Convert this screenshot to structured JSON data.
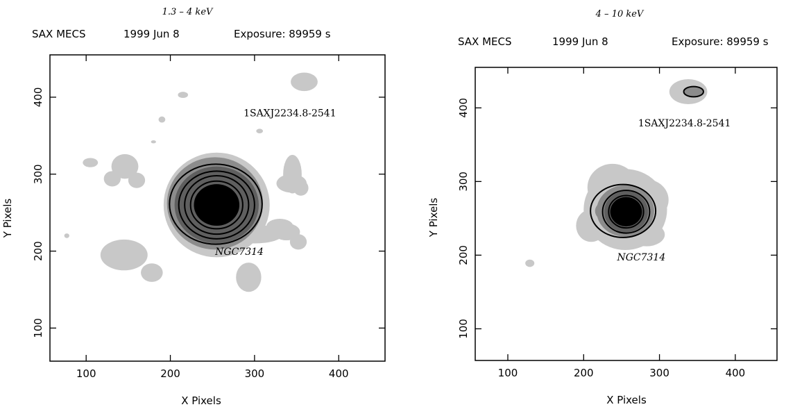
{
  "chart_data": [
    {
      "type": "heatmap",
      "energy_band": "1.3 – 4 keV",
      "header": {
        "instrument": "SAX MECS",
        "date": "1999 Jun 8",
        "exposure": "Exposure: 89959 s"
      },
      "xlabel": "X Pixels",
      "ylabel": "Y Pixels",
      "xlim": [
        57,
        455
      ],
      "ylim": [
        57,
        455
      ],
      "xticks": [
        100,
        200,
        300,
        400
      ],
      "yticks": [
        100,
        200,
        300,
        400
      ],
      "labels": [
        {
          "text": "1SAXJ2234.8-2541",
          "x": 342,
          "y": 375,
          "style": "source"
        },
        {
          "text": "NGC7314",
          "x": 282,
          "y": 195,
          "style": "galaxy"
        }
      ],
      "blobs": [
        {
          "cx": 255,
          "cy": 260,
          "rx": 63,
          "ry": 68,
          "level": 1
        },
        {
          "cx": 300,
          "cy": 222,
          "rx": 34,
          "ry": 12,
          "level": 1
        },
        {
          "cx": 330,
          "cy": 232,
          "rx": 16,
          "ry": 10,
          "level": 1
        },
        {
          "cx": 338,
          "cy": 225,
          "rx": 16,
          "ry": 11,
          "level": 1
        },
        {
          "cx": 352,
          "cy": 212,
          "rx": 10,
          "ry": 10,
          "level": 1
        },
        {
          "cx": 145,
          "cy": 195,
          "rx": 28,
          "ry": 20,
          "level": 1
        },
        {
          "cx": 178,
          "cy": 172,
          "rx": 13,
          "ry": 12,
          "level": 1
        },
        {
          "cx": 293,
          "cy": 166,
          "rx": 15,
          "ry": 19,
          "level": 1
        },
        {
          "cx": 146,
          "cy": 310,
          "rx": 16,
          "ry": 16,
          "level": 1
        },
        {
          "cx": 160,
          "cy": 292,
          "rx": 10,
          "ry": 10,
          "level": 1
        },
        {
          "cx": 131,
          "cy": 294,
          "rx": 10,
          "ry": 10,
          "level": 1
        },
        {
          "cx": 105,
          "cy": 315,
          "rx": 9,
          "ry": 6,
          "level": 1
        },
        {
          "cx": 345,
          "cy": 300,
          "rx": 11,
          "ry": 25,
          "level": 1
        },
        {
          "cx": 344,
          "cy": 288,
          "rx": 18,
          "ry": 12,
          "level": 1
        },
        {
          "cx": 355,
          "cy": 282,
          "rx": 9,
          "ry": 10,
          "level": 1
        },
        {
          "cx": 359,
          "cy": 420,
          "rx": 16,
          "ry": 12,
          "level": 1
        },
        {
          "cx": 215,
          "cy": 403,
          "rx": 6,
          "ry": 4,
          "level": 1
        },
        {
          "cx": 190,
          "cy": 371,
          "rx": 4,
          "ry": 4,
          "level": 1
        },
        {
          "cx": 306,
          "cy": 356,
          "rx": 4,
          "ry": 3,
          "level": 1
        },
        {
          "cx": 77,
          "cy": 220,
          "rx": 3,
          "ry": 3,
          "level": 1
        },
        {
          "cx": 180,
          "cy": 342,
          "rx": 3,
          "ry": 2,
          "level": 1
        },
        {
          "cx": 253,
          "cy": 262,
          "rx": 57,
          "ry": 60,
          "level": 2
        },
        {
          "cx": 255,
          "cy": 260,
          "rx": 50,
          "ry": 50,
          "level": 3
        },
        {
          "cx": 255,
          "cy": 260,
          "rx": 42,
          "ry": 42,
          "level": 3
        },
        {
          "cx": 255,
          "cy": 260,
          "rx": 34,
          "ry": 34,
          "level": 3
        },
        {
          "cx": 255,
          "cy": 260,
          "rx": 27,
          "ry": 27,
          "level": 4
        }
      ],
      "contours": [
        {
          "cx": 254,
          "cy": 261,
          "rx": 55,
          "ry": 52
        },
        {
          "cx": 255,
          "cy": 260,
          "rx": 45,
          "ry": 44
        },
        {
          "cx": 255,
          "cy": 260,
          "rx": 38,
          "ry": 38
        },
        {
          "cx": 255,
          "cy": 260,
          "rx": 31,
          "ry": 31
        }
      ]
    },
    {
      "type": "heatmap",
      "energy_band": "4 – 10 keV",
      "header": {
        "instrument": "SAX MECS",
        "date": "1999 Jun 8",
        "exposure": "Exposure: 89959 s"
      },
      "xlabel": "X Pixels",
      "ylabel": "Y Pixels",
      "xlim": [
        57,
        455
      ],
      "ylim": [
        57,
        455
      ],
      "xticks": [
        100,
        200,
        300,
        400
      ],
      "yticks": [
        100,
        200,
        300,
        400
      ],
      "labels": [
        {
          "text": "1SAXJ2234.8-2541",
          "x": 333,
          "y": 375,
          "style": "source"
        },
        {
          "text": "NGC7314",
          "x": 276,
          "y": 193,
          "style": "galaxy"
        }
      ],
      "blobs": [
        {
          "cx": 255,
          "cy": 262,
          "rx": 55,
          "ry": 55,
          "level": 1
        },
        {
          "cx": 238,
          "cy": 292,
          "rx": 33,
          "ry": 32,
          "level": 1
        },
        {
          "cx": 282,
          "cy": 275,
          "rx": 30,
          "ry": 28,
          "level": 1
        },
        {
          "cx": 210,
          "cy": 240,
          "rx": 20,
          "ry": 22,
          "level": 1
        },
        {
          "cx": 283,
          "cy": 228,
          "rx": 24,
          "ry": 16,
          "level": 1
        },
        {
          "cx": 338,
          "cy": 422,
          "rx": 25,
          "ry": 17,
          "level": 1
        },
        {
          "cx": 129,
          "cy": 189,
          "rx": 6,
          "ry": 5,
          "level": 1
        },
        {
          "cx": 255,
          "cy": 260,
          "rx": 38,
          "ry": 35,
          "level": 2
        },
        {
          "cx": 232,
          "cy": 260,
          "rx": 17,
          "ry": 14,
          "level": 2
        },
        {
          "cx": 345,
          "cy": 422,
          "rx": 13,
          "ry": 7,
          "level": 2
        },
        {
          "cx": 256,
          "cy": 259,
          "rx": 29,
          "ry": 28,
          "level": 3
        },
        {
          "cx": 256,
          "cy": 259,
          "rx": 21,
          "ry": 20,
          "level": 4
        }
      ],
      "contours": [
        {
          "cx": 252,
          "cy": 260,
          "rx": 43,
          "ry": 36
        },
        {
          "cx": 256,
          "cy": 259,
          "rx": 31,
          "ry": 29
        },
        {
          "cx": 256,
          "cy": 259,
          "rx": 23,
          "ry": 22
        },
        {
          "cx": 345,
          "cy": 422,
          "rx": 13,
          "ry": 7
        }
      ]
    }
  ],
  "level_colors": {
    "1": "#c8c8c8",
    "2": "#8c8c8c",
    "3": "#5f5f5f",
    "4": "#000000"
  }
}
